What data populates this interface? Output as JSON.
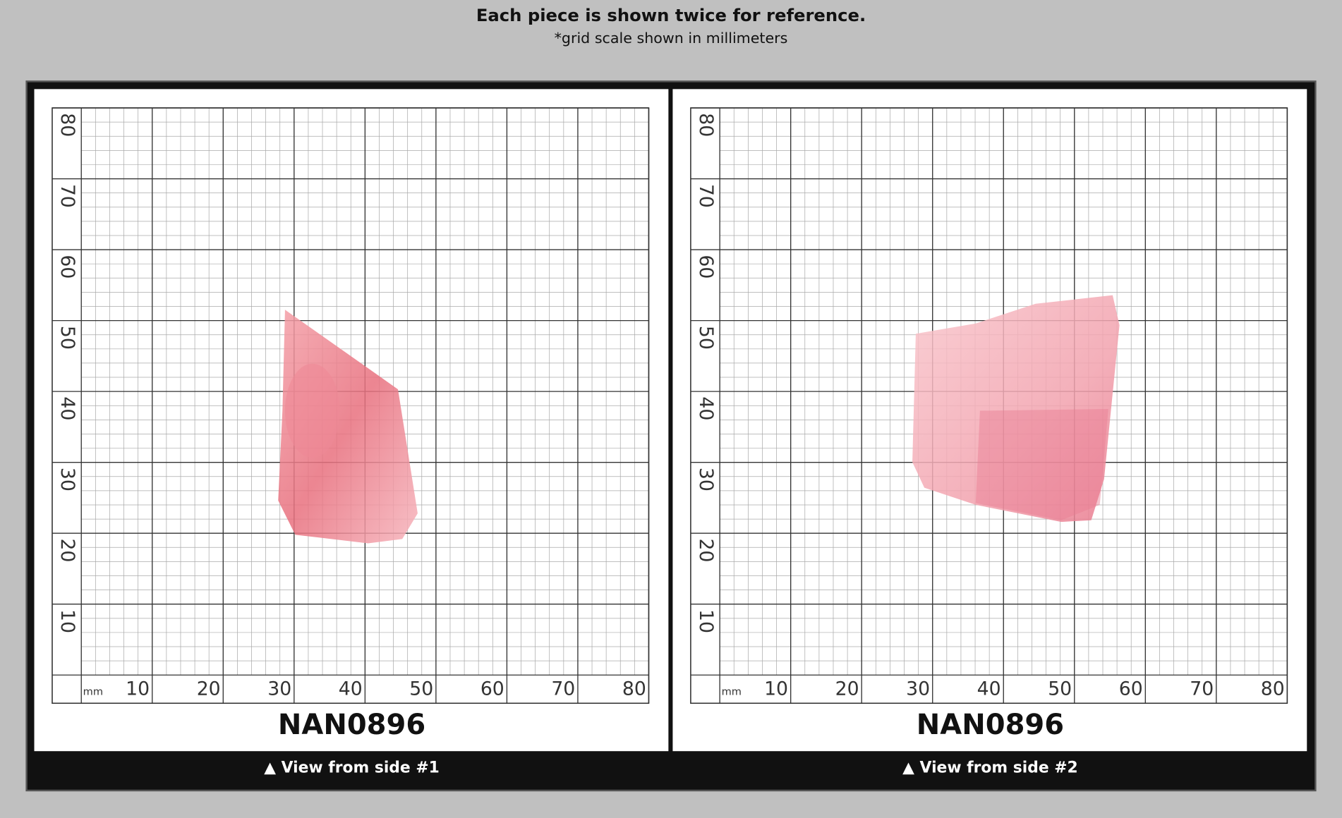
{
  "header": {
    "title": "Each piece is shown twice for reference.",
    "subtitle": "*grid scale shown in millimeters"
  },
  "panels": [
    {
      "x_unit": "mm",
      "x_labels": [
        "10",
        "20",
        "30",
        "40",
        "50",
        "60",
        "70",
        "80"
      ],
      "y_labels": [
        "10",
        "20",
        "30",
        "40",
        "50",
        "60",
        "70",
        "80"
      ],
      "id": "NAN0896",
      "caption": "▲ View from side #1"
    },
    {
      "x_unit": "mm",
      "x_labels": [
        "10",
        "20",
        "30",
        "40",
        "50",
        "60",
        "70",
        "80"
      ],
      "y_labels": [
        "10",
        "20",
        "30",
        "40",
        "50",
        "60",
        "70",
        "80"
      ],
      "id": "NAN0896",
      "caption": "▲ View from side #2"
    }
  ]
}
